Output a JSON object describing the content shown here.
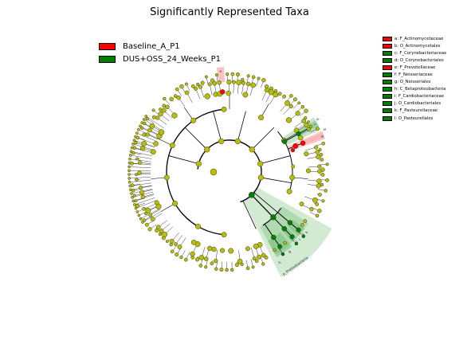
{
  "title": "Significantly Represented Taxa",
  "colors": {
    "red": "#ff0000",
    "green": "#008000",
    "node": "#b8bf00",
    "red_shade": "#f7a8a8",
    "green_shade": "#5fb35f"
  },
  "legend": [
    {
      "label": "Baseline_A_P1",
      "color": "#ff0000"
    },
    {
      "label": "DUS+OSS_24_Weeks_P1",
      "color": "#008000"
    }
  ],
  "clade_legend": [
    {
      "label": "a: F_Actinomycetaceae",
      "color": "#ff0000"
    },
    {
      "label": "b: O_Actinomycetales",
      "color": "#ff0000"
    },
    {
      "label": "c: F_Corynebacteriaceae",
      "color": "#008000"
    },
    {
      "label": "d: O_Corynebacteriales",
      "color": "#008000"
    },
    {
      "label": "e: F_Prevotellaceae",
      "color": "#ff0000"
    },
    {
      "label": "f: F_Neisseriaceae",
      "color": "#008000"
    },
    {
      "label": "g: O_Neisseriales",
      "color": "#008000"
    },
    {
      "label": "h: C_Betaproteobacteria",
      "color": "#008000"
    },
    {
      "label": "i: F_Cardiobacteriaceae",
      "color": "#008000"
    },
    {
      "label": "j: O_Cardiobacteriales",
      "color": "#008000"
    },
    {
      "label": "k: F_Pasteurellaceae",
      "color": "#008000"
    },
    {
      "label": "l: O_Pasteurellales",
      "color": "#008000"
    }
  ],
  "sector_labels": {
    "phylum": "p_Proteobacteria",
    "a": "a",
    "b": "b",
    "c": "c",
    "d": "d",
    "e": "e",
    "f": "f",
    "g": "g",
    "h": "h",
    "i": "i",
    "j": "j",
    "k": "k",
    "l": "l"
  }
}
